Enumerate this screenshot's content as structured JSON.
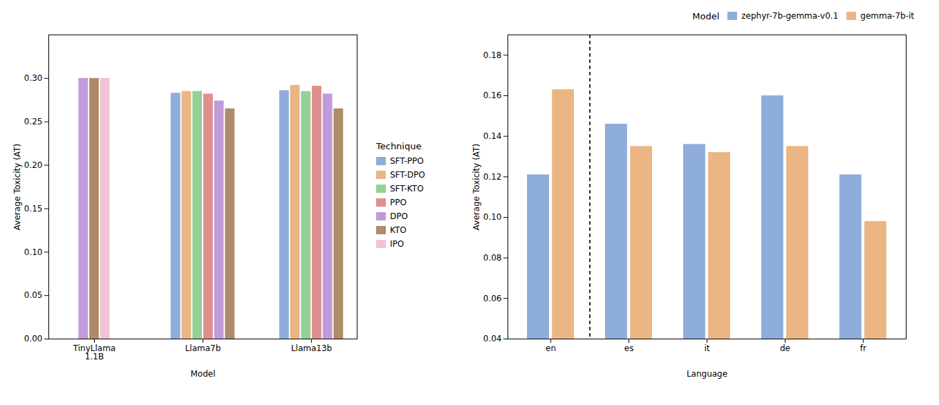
{
  "chart_data": [
    {
      "type": "bar",
      "categories": [
        "TinyLlama\n1.1B",
        "Llama7b",
        "Llama13b"
      ],
      "series": [
        {
          "name": "SFT-PPO",
          "color": "#7b9fd4",
          "values": [
            null,
            0.283,
            0.286
          ]
        },
        {
          "name": "SFT-DPO",
          "color": "#e8a96e",
          "values": [
            null,
            0.285,
            0.292
          ]
        },
        {
          "name": "SFT-KTO",
          "color": "#82c882",
          "values": [
            null,
            0.285,
            0.285
          ]
        },
        {
          "name": "PPO",
          "color": "#d97b7b",
          "values": [
            null,
            0.282,
            0.291
          ]
        },
        {
          "name": "DPO",
          "color": "#b589d6",
          "values": [
            0.3,
            0.274,
            0.282
          ]
        },
        {
          "name": "KTO",
          "color": "#a07850",
          "values": [
            0.3,
            0.265,
            0.265
          ]
        },
        {
          "name": "IPO",
          "color": "#f0b8d0",
          "values": [
            0.3,
            null,
            null
          ]
        }
      ],
      "xlabel": "Model",
      "ylabel": "Average Toxicity (AT)",
      "ylim": [
        0,
        0.35
      ],
      "yticks": [
        {
          "value": 0,
          "label": "0.00"
        },
        0.05,
        {
          "value": 0.1,
          "label": "0.10"
        },
        0.15,
        {
          "value": 0.2,
          "label": "0.20"
        },
        0.25,
        {
          "value": 0.3,
          "label": "0.30"
        }
      ],
      "legend_title": "Technique",
      "legend": "right",
      "grid": false
    },
    {
      "type": "bar",
      "categories": [
        "en",
        "es",
        "it",
        "de",
        "fr"
      ],
      "series": [
        {
          "name": "zephyr-7b-gemma-v0.1",
          "color": "#7b9fd4",
          "values": [
            0.121,
            0.146,
            0.136,
            0.16,
            0.121
          ]
        },
        {
          "name": "gemma-7b-it",
          "color": "#e8a96e",
          "values": [
            0.163,
            0.135,
            0.132,
            0.135,
            0.098
          ]
        }
      ],
      "xlabel": "Language",
      "ylabel": "Average Toxicity (AT)",
      "ylim": [
        0.04,
        0.19
      ],
      "yticks": [
        0.04,
        0.06,
        0.08,
        {
          "value": 0.1,
          "label": "0.10"
        },
        0.12,
        0.14,
        0.16,
        0.18
      ],
      "legend_title": "Model",
      "legend": "upper right",
      "grid": false
    }
  ]
}
